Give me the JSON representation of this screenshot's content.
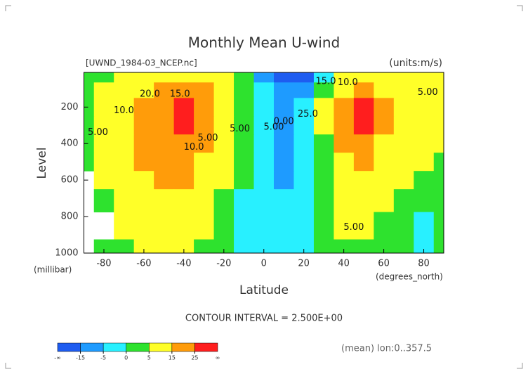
{
  "chart_data": {
    "type": "contour",
    "title": "Monthly Mean U-wind",
    "dataset_label": "[UWND_1984-03_NCEP.nc]",
    "units_label": "(units:m/s)",
    "y_label": "Level",
    "y_units": "(millibar)",
    "x_label": "Latitude",
    "x_units": "(degrees_north)",
    "contour_note": "CONTOUR INTERVAL = 2.500E+00",
    "footer_note": "(mean) lon:0..357.5",
    "x": [
      -90,
      -80,
      -70,
      -60,
      -50,
      -40,
      -30,
      -20,
      -10,
      0,
      10,
      20,
      30,
      40,
      50,
      60,
      70,
      80,
      90
    ],
    "levels": [
      30,
      100,
      200,
      300,
      400,
      500,
      600,
      700,
      850,
      1000
    ],
    "z": [
      [
        2,
        3,
        5,
        8,
        12,
        14,
        13,
        8,
        2,
        -8,
        -20,
        -18,
        -5,
        5,
        12,
        14,
        10,
        7,
        5
      ],
      [
        3,
        5,
        9,
        14,
        18,
        20,
        16,
        9,
        2,
        -5,
        -10,
        -7,
        4,
        14,
        17,
        14,
        10,
        7,
        5
      ],
      [
        3,
        5,
        11,
        18,
        24,
        27,
        22,
        12,
        4,
        -4,
        -7,
        -3,
        6,
        20,
        28,
        22,
        14,
        8,
        6
      ],
      [
        3,
        6,
        12,
        18,
        23,
        26,
        20,
        11,
        4,
        -4,
        -6,
        -3,
        5,
        18,
        26,
        20,
        12,
        8,
        6
      ],
      [
        3,
        6,
        12,
        17,
        20,
        20,
        16,
        9,
        3,
        -5,
        -6,
        -3,
        4,
        15,
        20,
        14,
        9,
        7,
        5
      ],
      [
        4,
        6,
        11,
        15,
        17,
        17,
        13,
        7,
        1,
        -5,
        -6,
        -3,
        3,
        12,
        15,
        10,
        7,
        5,
        4
      ],
      [
        null,
        5,
        10,
        14,
        16,
        15,
        11,
        5,
        0,
        -5,
        -6,
        -3,
        2,
        10,
        12,
        8,
        5,
        4,
        4
      ],
      [
        null,
        4,
        9,
        12,
        13,
        12,
        9,
        4,
        -1,
        -4,
        -5,
        -3,
        1,
        8,
        10,
        7,
        4,
        3,
        3
      ],
      [
        null,
        null,
        6,
        9,
        10,
        9,
        6,
        3,
        -1,
        -4,
        -5,
        -2,
        1,
        5,
        7,
        4,
        2,
        -1,
        1
      ],
      [
        null,
        2,
        4,
        6,
        8,
        7,
        4,
        1,
        -2,
        -4,
        -5,
        -3,
        0,
        3,
        3,
        2,
        0,
        -2,
        1
      ]
    ],
    "xlim": [
      -90,
      90
    ],
    "ylim": [
      1000,
      10
    ],
    "xticks": [
      -80,
      -60,
      -40,
      -20,
      0,
      20,
      40,
      60,
      80
    ],
    "yticks": [
      200,
      400,
      600,
      800,
      1000
    ],
    "colorbar": {
      "boundaries": [
        -15,
        -5,
        0,
        5,
        15,
        25
      ],
      "colors": [
        "#1e5cf0",
        "#1e9bff",
        "#28f0ff",
        "#2ee22e",
        "#ffff28",
        "#ff9c0a",
        "#ff1e1e"
      ],
      "low_label": "-∞",
      "high_label": "∞"
    },
    "annotations": [
      {
        "text": "20.0",
        "x": -57,
        "level": 130
      },
      {
        "text": "15.0",
        "x": -42,
        "level": 130
      },
      {
        "text": "10.0",
        "x": -70,
        "level": 220
      },
      {
        "text": "5.00",
        "x": -83,
        "level": 340
      },
      {
        "text": "10.0",
        "x": -35,
        "level": 420
      },
      {
        "text": "5.00",
        "x": -28,
        "level": 370
      },
      {
        "text": "5.00",
        "x": -12,
        "level": 320
      },
      {
        "text": "0.00",
        "x": 10,
        "level": 280
      },
      {
        "text": "5.00",
        "x": 5,
        "level": 310
      },
      {
        "text": "15.0",
        "x": 31,
        "level": 60
      },
      {
        "text": "10.0",
        "x": 42,
        "level": 65
      },
      {
        "text": "25.0",
        "x": 22,
        "level": 240
      },
      {
        "text": "5.00",
        "x": 82,
        "level": 120
      },
      {
        "text": "5.00",
        "x": 45,
        "level": 860
      }
    ]
  }
}
